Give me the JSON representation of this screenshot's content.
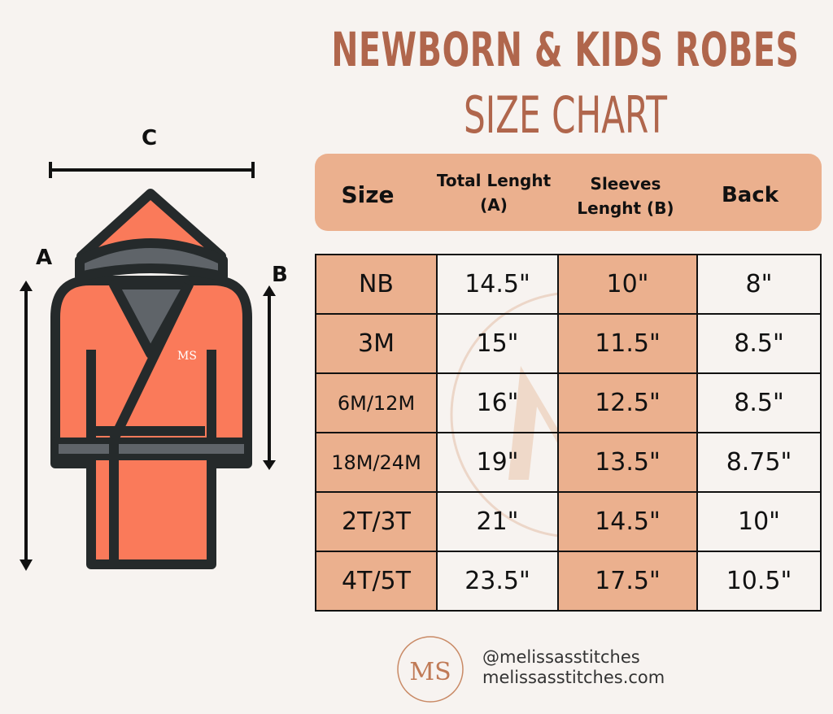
{
  "title": {
    "line1": "NEWBORN & KIDS ROBES",
    "line2": "SIZE CHART"
  },
  "colors": {
    "title": "#b0664c",
    "accent": "#ebb08e",
    "robe": "#fa7a5a",
    "outline": "#252a2b",
    "hood_inner": "#5f6469"
  },
  "header": [
    "Size",
    "Total Lenght (A)",
    "Sleeves Lenght (B)",
    "Back"
  ],
  "rows": [
    [
      "NB",
      "14.5\"",
      "10\"",
      "8\""
    ],
    [
      "3M",
      "15\"",
      "11.5\"",
      "8.5\""
    ],
    [
      "6M/12M",
      "16\"",
      "12.5\"",
      "8.5\""
    ],
    [
      "18M/24M",
      "19\"",
      "13.5\"",
      "8.75\""
    ],
    [
      "2T/3T",
      "21\"",
      "14.5\"",
      "10\""
    ],
    [
      "4T/5T",
      "23.5\"",
      "17.5\"",
      "10.5\""
    ]
  ],
  "diagram": {
    "a": "A",
    "b": "B",
    "c": "C"
  },
  "logo_text": "MS",
  "footer": {
    "handle": "@melissasstitches",
    "website": "melissasstitches.com"
  }
}
